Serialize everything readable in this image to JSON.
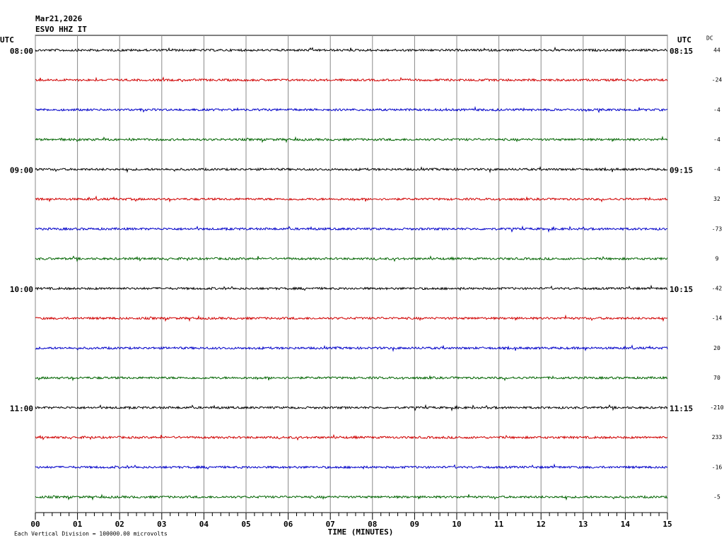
{
  "chart_data": {
    "type": "helicorder",
    "title": "Mar21,2026",
    "subtitle": "ESVO HHZ IT",
    "left_axis_title": "UTC",
    "right_axis_title": "UTC",
    "dc_title": "DC",
    "xlabel": "TIME (MINUTES)",
    "footer": "Each Vertical Division = 100000.00 microvolts",
    "xlim": [
      0,
      15
    ],
    "xticks": [
      {
        "value": 0,
        "label": "00"
      },
      {
        "value": 1,
        "label": "01"
      },
      {
        "value": 2,
        "label": "02"
      },
      {
        "value": 3,
        "label": "03"
      },
      {
        "value": 4,
        "label": "04"
      },
      {
        "value": 5,
        "label": "05"
      },
      {
        "value": 6,
        "label": "06"
      },
      {
        "value": 7,
        "label": "07"
      },
      {
        "value": 8,
        "label": "08"
      },
      {
        "value": 9,
        "label": "09"
      },
      {
        "value": 10,
        "label": "10"
      },
      {
        "value": 11,
        "label": "11"
      },
      {
        "value": 12,
        "label": "12"
      },
      {
        "value": 13,
        "label": "13"
      },
      {
        "value": 14,
        "label": "14"
      },
      {
        "value": 15,
        "label": "15"
      }
    ],
    "grid": true,
    "left_labels": [
      "08:00",
      null,
      null,
      null,
      "09:00",
      null,
      null,
      null,
      "10:00",
      null,
      null,
      null,
      "11:00",
      null,
      null,
      null
    ],
    "right_labels": [
      "08:15",
      null,
      null,
      null,
      "09:15",
      null,
      null,
      null,
      "10:15",
      null,
      null,
      null,
      "11:15",
      null,
      null,
      null
    ],
    "series": [
      {
        "color": "#000000",
        "dc": 44
      },
      {
        "color": "#d00000",
        "dc": -24
      },
      {
        "color": "#0000c8",
        "dc": -4
      },
      {
        "color": "#006400",
        "dc": -4
      },
      {
        "color": "#000000",
        "dc": -4
      },
      {
        "color": "#d00000",
        "dc": 32
      },
      {
        "color": "#0000c8",
        "dc": -73
      },
      {
        "color": "#006400",
        "dc": 9
      },
      {
        "color": "#000000",
        "dc": -42
      },
      {
        "color": "#d00000",
        "dc": -14
      },
      {
        "color": "#0000c8",
        "dc": 20
      },
      {
        "color": "#006400",
        "dc": 70
      },
      {
        "color": "#000000",
        "dc": -210
      },
      {
        "color": "#d00000",
        "dc": 233
      },
      {
        "color": "#0000c8",
        "dc": -16
      },
      {
        "color": "#006400",
        "dc": -5
      }
    ]
  }
}
